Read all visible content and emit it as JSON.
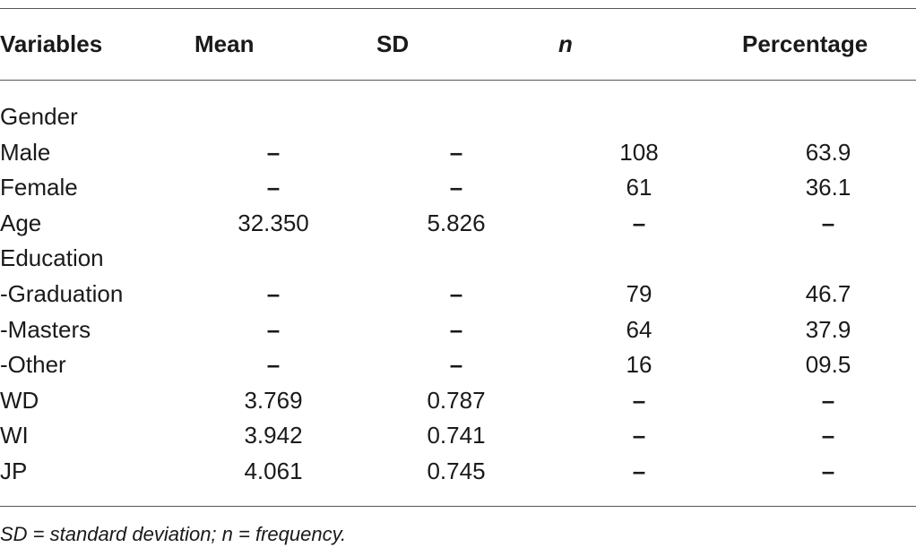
{
  "table": {
    "headers": {
      "variables": "Variables",
      "mean": "Mean",
      "sd": "SD",
      "n": "n",
      "percentage": "Percentage"
    },
    "rows": [
      {
        "label": "Gender",
        "mean": "",
        "sd": "",
        "n": "",
        "pct": ""
      },
      {
        "label": "Male",
        "mean": "–",
        "sd": "–",
        "n": "108",
        "pct": "63.9"
      },
      {
        "label": "Female",
        "mean": "–",
        "sd": "–",
        "n": "61",
        "pct": "36.1"
      },
      {
        "label": "Age",
        "mean": "32.350",
        "sd": "5.826",
        "n": "–",
        "pct": "–"
      },
      {
        "label": "Education",
        "mean": "",
        "sd": "",
        "n": "",
        "pct": ""
      },
      {
        "label": "-Graduation",
        "mean": "–",
        "sd": "–",
        "n": "79",
        "pct": "46.7"
      },
      {
        "label": "-Masters",
        "mean": "–",
        "sd": "–",
        "n": "64",
        "pct": "37.9"
      },
      {
        "label": "-Other",
        "mean": "–",
        "sd": "–",
        "n": "16",
        "pct": "09.5"
      },
      {
        "label": "WD",
        "mean": "3.769",
        "sd": "0.787",
        "n": "–",
        "pct": "–"
      },
      {
        "label": "WI",
        "mean": "3.942",
        "sd": "0.741",
        "n": "–",
        "pct": "–"
      },
      {
        "label": "JP",
        "mean": "4.061",
        "sd": "0.745",
        "n": "–",
        "pct": "–"
      }
    ]
  },
  "footnote": "SD = standard deviation; n = frequency."
}
